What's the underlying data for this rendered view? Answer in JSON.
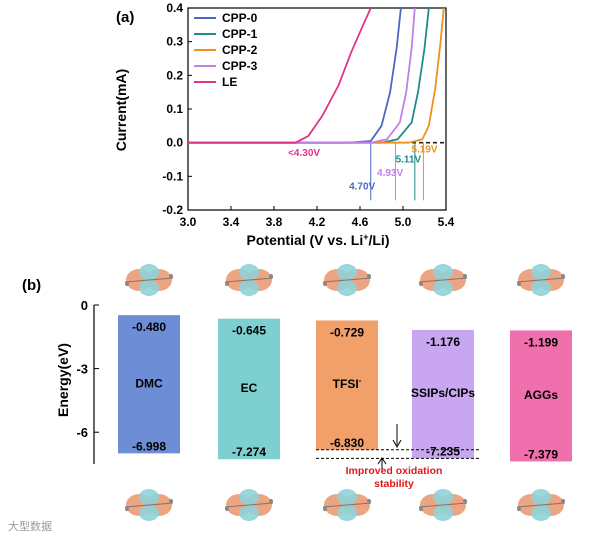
{
  "panel_a_label": "(a)",
  "panel_b_label": "(b)",
  "watermark": "大型数据",
  "chart_data": [
    {
      "type": "line",
      "panel": "(a)",
      "xlabel": "Potential (V vs. Li",
      "xlabel_sup": "+",
      "xlabel_tail": "/Li)",
      "ylabel": "Current(mA)",
      "xlim": [
        3.0,
        5.4
      ],
      "ylim": [
        -0.2,
        0.4
      ],
      "x_ticks": [
        "3.0",
        "3.4",
        "3.8",
        "4.2",
        "4.6",
        "5.0",
        "5.4"
      ],
      "y_ticks": [
        "-0.2",
        "-0.1",
        "0.0",
        "0.1",
        "0.2",
        "0.3",
        "0.4"
      ],
      "legend_position": "top-left",
      "series": [
        {
          "name": "CPP-0",
          "color": "#4a67c4",
          "onset": 4.7,
          "onset_label": "4.70V",
          "points": [
            [
              3.0,
              0.0
            ],
            [
              4.5,
              0.0
            ],
            [
              4.7,
              0.005
            ],
            [
              4.8,
              0.05
            ],
            [
              4.88,
              0.15
            ],
            [
              4.94,
              0.28
            ],
            [
              4.98,
              0.4
            ]
          ]
        },
        {
          "name": "CPP-1",
          "color": "#1f8c8c",
          "onset": 5.11,
          "onset_label": "5.11V",
          "points": [
            [
              3.0,
              0.0
            ],
            [
              4.8,
              0.0
            ],
            [
              4.95,
              0.01
            ],
            [
              5.08,
              0.06
            ],
            [
              5.14,
              0.15
            ],
            [
              5.2,
              0.28
            ],
            [
              5.24,
              0.4
            ]
          ]
        },
        {
          "name": "CPP-2",
          "color": "#f0901e",
          "onset": 5.19,
          "onset_label": "5.19V",
          "points": [
            [
              3.0,
              0.0
            ],
            [
              5.05,
              0.0
            ],
            [
              5.18,
              0.01
            ],
            [
              5.24,
              0.05
            ],
            [
              5.3,
              0.16
            ],
            [
              5.35,
              0.3
            ],
            [
              5.38,
              0.4
            ]
          ]
        },
        {
          "name": "CPP-3",
          "color": "#c080e8",
          "onset": 4.93,
          "onset_label": "4.93V",
          "points": [
            [
              3.0,
              0.0
            ],
            [
              4.7,
              0.0
            ],
            [
              4.85,
              0.01
            ],
            [
              4.97,
              0.06
            ],
            [
              5.03,
              0.15
            ],
            [
              5.08,
              0.28
            ],
            [
              5.11,
              0.4
            ]
          ]
        },
        {
          "name": "LE",
          "color": "#e0338a",
          "onset": 4.3,
          "onset_label": "<4.30V",
          "points": [
            [
              3.0,
              0.0
            ],
            [
              4.0,
              0.0
            ],
            [
              4.12,
              0.02
            ],
            [
              4.25,
              0.08
            ],
            [
              4.4,
              0.17
            ],
            [
              4.52,
              0.27
            ],
            [
              4.63,
              0.35
            ],
            [
              4.7,
              0.4
            ]
          ]
        }
      ]
    },
    {
      "type": "bar",
      "panel": "(b)",
      "ylabel": "Energy(eV)",
      "ylim": [
        -7.5,
        0
      ],
      "y_ticks": [
        "0",
        "-3",
        "-6"
      ],
      "bars": [
        {
          "category": "DMC",
          "top": -0.48,
          "bottom": -6.998,
          "top_label": "-0.480",
          "bottom_label": "-6.998",
          "color": "#6d8ed6"
        },
        {
          "category": "EC",
          "top": -0.645,
          "bottom": -7.274,
          "top_label": "-0.645",
          "bottom_label": "-7.274",
          "color": "#7ecfcf"
        },
        {
          "category": "TFSI",
          "category_sup": "-",
          "top": -0.729,
          "bottom": -6.83,
          "top_label": "-0.729",
          "bottom_label": "-6.830",
          "color": "#f2a06a"
        },
        {
          "category": "SSIPs/CIPs",
          "top": -1.176,
          "bottom": -7.235,
          "top_label": "-1.176",
          "bottom_label": "-7.235",
          "color": "#c9a7f0"
        },
        {
          "category": "AGGs",
          "top": -1.199,
          "bottom": -7.379,
          "top_label": "-1.199",
          "bottom_label": "-7.379",
          "color": "#f06fad"
        }
      ],
      "annotation": {
        "line1": "Improved oxidation",
        "line2": "stability",
        "color": "#e01818"
      }
    }
  ]
}
